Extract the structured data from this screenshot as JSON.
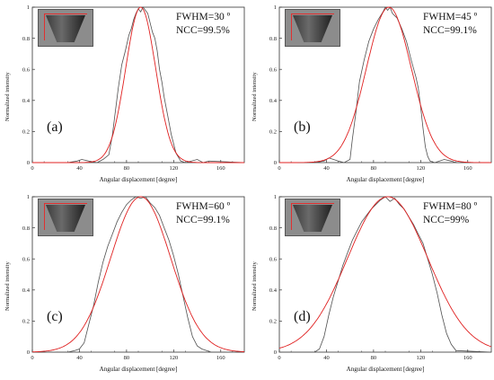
{
  "figure": {
    "panels": [
      {
        "label": "(a)",
        "fwhm_text": "FWHM=30 º",
        "ncc_text": "NCC=99.5%"
      },
      {
        "label": "(b)",
        "fwhm_text": "FWHM=45 º",
        "ncc_text": "NCC=99.1%"
      },
      {
        "label": "(c)",
        "fwhm_text": "FWHM=60 º",
        "ncc_text": "NCC=99.1%"
      },
      {
        "label": "(d)",
        "fwhm_text": "FWHM=80 º",
        "ncc_text": "NCC=99%"
      }
    ]
  },
  "colors": {
    "measured": "#505050",
    "fit": "#e02020",
    "axis": "#333333"
  },
  "chart_data": [
    {
      "type": "line",
      "panel": "(a)",
      "xlabel": "Angular displacement [degree]",
      "ylabel": "Normalized intensity",
      "xlim": [
        0,
        180
      ],
      "ylim": [
        0,
        1
      ],
      "xticks": [
        "0",
        "40",
        "80",
        "120",
        "160"
      ],
      "yticks": [
        "0",
        "0.2",
        "0.4",
        "0.6",
        "0.8",
        "1"
      ],
      "annotations": [
        "FWHM=30 º",
        "NCC=99.5%"
      ],
      "series": [
        {
          "color": "#505050",
          "x": [
            0,
            30,
            38,
            42,
            48,
            55,
            60,
            65,
            68,
            70,
            73,
            76,
            79,
            82,
            84,
            86,
            88,
            90,
            92,
            94,
            96,
            98,
            100,
            102,
            104,
            106,
            108,
            110,
            112,
            115,
            118,
            122,
            126,
            130,
            140,
            145,
            150,
            180
          ],
          "y": [
            0,
            0,
            0.01,
            0.02,
            0.01,
            0,
            0.02,
            0.05,
            0.18,
            0.3,
            0.48,
            0.63,
            0.72,
            0.82,
            0.86,
            0.92,
            0.96,
            0.99,
            0.97,
            1,
            0.98,
            0.96,
            0.9,
            0.84,
            0.8,
            0.72,
            0.6,
            0.52,
            0.42,
            0.3,
            0.18,
            0.06,
            0.01,
            0,
            0.02,
            0,
            0.01,
            0
          ]
        },
        {
          "color": "#e02020",
          "fit": "gaussian",
          "center": 92,
          "fwhm": 30
        }
      ]
    },
    {
      "type": "line",
      "panel": "(b)",
      "xlabel": "Angular displacement [degree]",
      "ylabel": "Normalized intensity",
      "xlim": [
        0,
        180
      ],
      "ylim": [
        0,
        1
      ],
      "xticks": [
        "0",
        "40",
        "80",
        "120",
        "160"
      ],
      "yticks": [
        "0",
        "0.2",
        "0.4",
        "0.6",
        "0.8",
        "1"
      ],
      "annotations": [
        "FWHM=45 º",
        "NCC=99.1%"
      ],
      "series": [
        {
          "color": "#505050",
          "x": [
            0,
            30,
            38,
            42,
            46,
            50,
            55,
            60,
            62,
            65,
            68,
            72,
            76,
            80,
            84,
            88,
            90,
            92,
            94,
            96,
            100,
            104,
            108,
            112,
            116,
            118,
            120,
            122,
            124,
            126,
            128,
            132,
            140,
            146,
            150,
            180
          ],
          "y": [
            0,
            0,
            0.01,
            0.03,
            0.02,
            0.01,
            0,
            0.02,
            0.15,
            0.32,
            0.52,
            0.66,
            0.78,
            0.86,
            0.92,
            0.97,
            1,
            0.98,
            1,
            0.96,
            0.93,
            0.86,
            0.78,
            0.66,
            0.55,
            0.48,
            0.36,
            0.22,
            0.1,
            0.04,
            0.01,
            0,
            0.02,
            0.01,
            0,
            0
          ]
        },
        {
          "color": "#e02020",
          "fit": "gaussian",
          "center": 93,
          "fwhm": 45
        }
      ]
    },
    {
      "type": "line",
      "panel": "(c)",
      "xlabel": "Angular displacement [degree]",
      "ylabel": "Normalized intensity",
      "xlim": [
        0,
        180
      ],
      "ylim": [
        0,
        1
      ],
      "xticks": [
        "0",
        "40",
        "80",
        "120",
        "160"
      ],
      "yticks": [
        "0",
        "0.2",
        "0.4",
        "0.6",
        "0.8",
        "1"
      ],
      "annotations": [
        "FWHM=60 º",
        "NCC=99.1%"
      ],
      "series": [
        {
          "color": "#505050",
          "x": [
            0,
            30,
            36,
            40,
            44,
            48,
            52,
            56,
            60,
            64,
            68,
            72,
            76,
            80,
            84,
            88,
            92,
            96,
            100,
            104,
            108,
            112,
            116,
            120,
            124,
            128,
            132,
            136,
            140,
            144,
            148,
            152,
            180
          ],
          "y": [
            0,
            0,
            0.01,
            0.02,
            0.06,
            0.18,
            0.3,
            0.45,
            0.58,
            0.68,
            0.76,
            0.84,
            0.9,
            0.95,
            0.98,
            1,
            0.99,
            1,
            0.96,
            0.93,
            0.88,
            0.8,
            0.72,
            0.62,
            0.5,
            0.36,
            0.22,
            0.1,
            0.04,
            0.02,
            0.01,
            0,
            0
          ]
        },
        {
          "color": "#e02020",
          "fit": "gaussian",
          "center": 92,
          "fwhm": 60
        }
      ]
    },
    {
      "type": "line",
      "panel": "(d)",
      "xlabel": "Angular displacement [degree]",
      "ylabel": "Normalized intensity",
      "xlim": [
        0,
        180
      ],
      "ylim": [
        0,
        1
      ],
      "xticks": [
        "0",
        "40",
        "80",
        "120",
        "160"
      ],
      "yticks": [
        "0",
        "0.2",
        "0.4",
        "0.6",
        "0.8",
        "1"
      ],
      "annotations": [
        "FWHM=80 º",
        "NCC=99%"
      ],
      "series": [
        {
          "color": "#505050",
          "x": [
            0,
            30,
            34,
            38,
            42,
            46,
            50,
            54,
            58,
            62,
            66,
            70,
            74,
            78,
            82,
            86,
            90,
            94,
            98,
            102,
            106,
            110,
            114,
            118,
            122,
            126,
            130,
            134,
            138,
            142,
            146,
            150,
            180
          ],
          "y": [
            0,
            0,
            0.02,
            0.1,
            0.24,
            0.36,
            0.46,
            0.56,
            0.64,
            0.72,
            0.78,
            0.84,
            0.88,
            0.92,
            0.95,
            0.98,
            1,
            0.97,
            0.99,
            0.95,
            0.92,
            0.87,
            0.82,
            0.76,
            0.7,
            0.6,
            0.5,
            0.38,
            0.24,
            0.12,
            0.05,
            0.01,
            0
          ]
        },
        {
          "color": "#e02020",
          "fit": "gaussian",
          "center": 92,
          "fwhm": 80
        }
      ]
    }
  ]
}
